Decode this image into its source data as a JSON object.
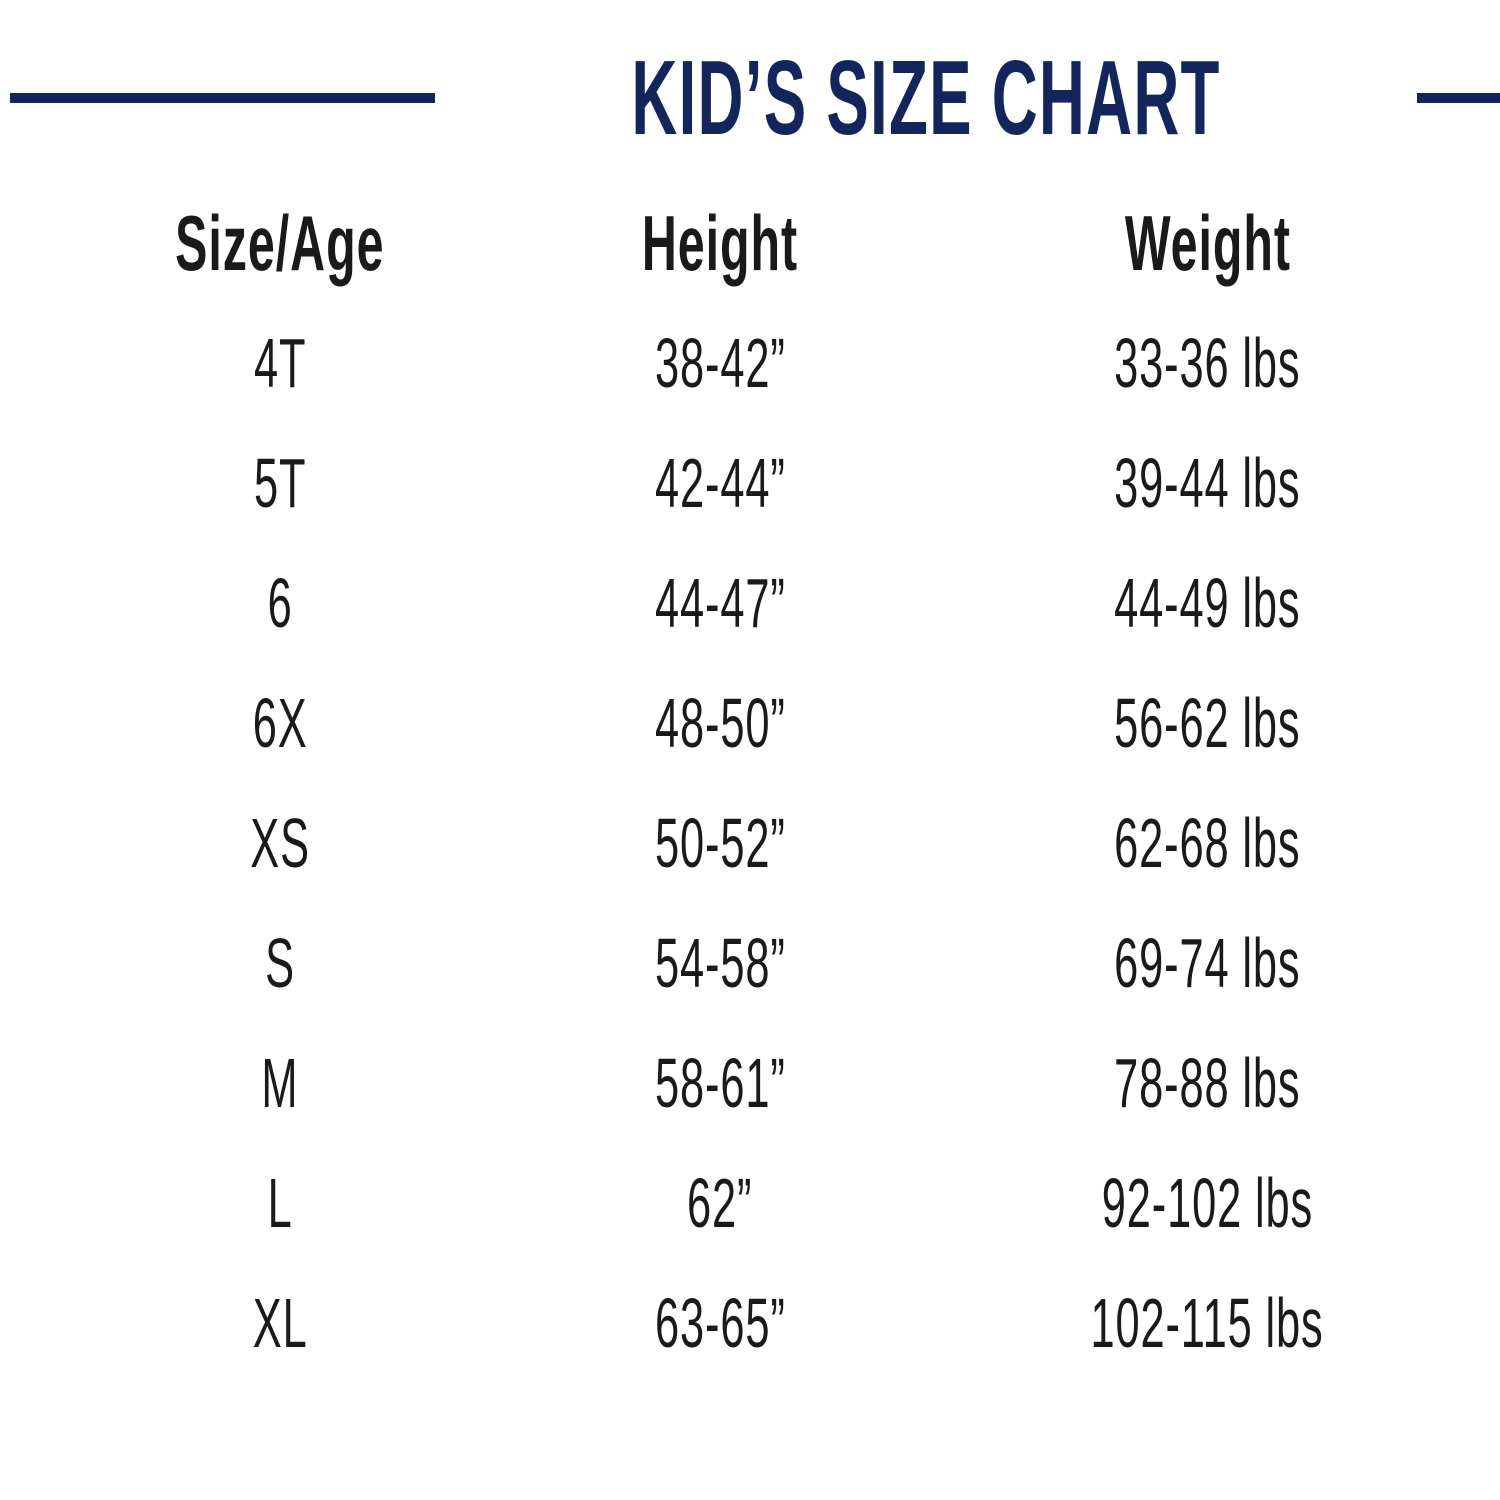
{
  "accent_color": "#13265c",
  "text_color": "#1a1a1a",
  "header": {
    "title": "KID’S SIZE CHART"
  },
  "table": {
    "columns": [
      "Size/Age",
      "Height",
      "Weight"
    ],
    "rows": [
      {
        "size": "4T",
        "height": "38-42”",
        "weight": "33-36 lbs"
      },
      {
        "size": "5T",
        "height": "42-44”",
        "weight": "39-44 lbs"
      },
      {
        "size": "6",
        "height": "44-47”",
        "weight": "44-49 lbs"
      },
      {
        "size": "6X",
        "height": "48-50”",
        "weight": "56-62 lbs"
      },
      {
        "size": "XS",
        "height": "50-52”",
        "weight": "62-68 lbs"
      },
      {
        "size": "S",
        "height": "54-58”",
        "weight": "69-74 lbs"
      },
      {
        "size": "M",
        "height": "58-61”",
        "weight": "78-88 lbs"
      },
      {
        "size": "L",
        "height": "62”",
        "weight": "92-102 lbs"
      },
      {
        "size": "XL",
        "height": "63-65”",
        "weight": "102-115 lbs"
      }
    ]
  },
  "chart_data": {
    "type": "table",
    "title": "KID’S SIZE CHART",
    "columns": [
      "Size/Age",
      "Height",
      "Weight"
    ],
    "rows": [
      [
        "4T",
        "38-42”",
        "33-36 lbs"
      ],
      [
        "5T",
        "42-44”",
        "39-44 lbs"
      ],
      [
        "6",
        "44-47”",
        "44-49 lbs"
      ],
      [
        "6X",
        "48-50”",
        "56-62 lbs"
      ],
      [
        "XS",
        "50-52”",
        "62-68 lbs"
      ],
      [
        "S",
        "54-58”",
        "69-74 lbs"
      ],
      [
        "M",
        "58-61”",
        "78-88 lbs"
      ],
      [
        "L",
        "62”",
        "92-102 lbs"
      ],
      [
        "XL",
        "63-65”",
        "102-115 lbs"
      ]
    ]
  }
}
